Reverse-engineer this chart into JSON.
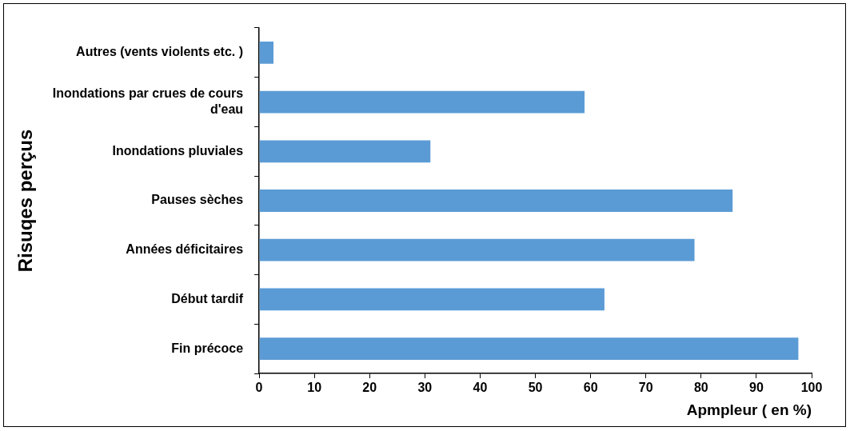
{
  "chart_data": {
    "type": "bar",
    "orientation": "horizontal",
    "xlabel": "Apmpleur ( en %)",
    "ylabel": "Risuqes perçus",
    "categories": [
      "Autres (vents violents etc. )",
      "Inondations par crues de cours d'eau",
      "Inondations pluviales",
      "Pauses sèches",
      "Années déficitaires",
      "Début tardif",
      "Fin précoce"
    ],
    "values": [
      2.6,
      58.9,
      31.0,
      85.7,
      78.8,
      62.5,
      97.6
    ],
    "color": "#5b9bd5",
    "xlim": [
      0,
      100
    ],
    "xticks": [
      0,
      10,
      20,
      30,
      40,
      50,
      60,
      70,
      80,
      90,
      100
    ],
    "grid": false,
    "legend": false
  }
}
